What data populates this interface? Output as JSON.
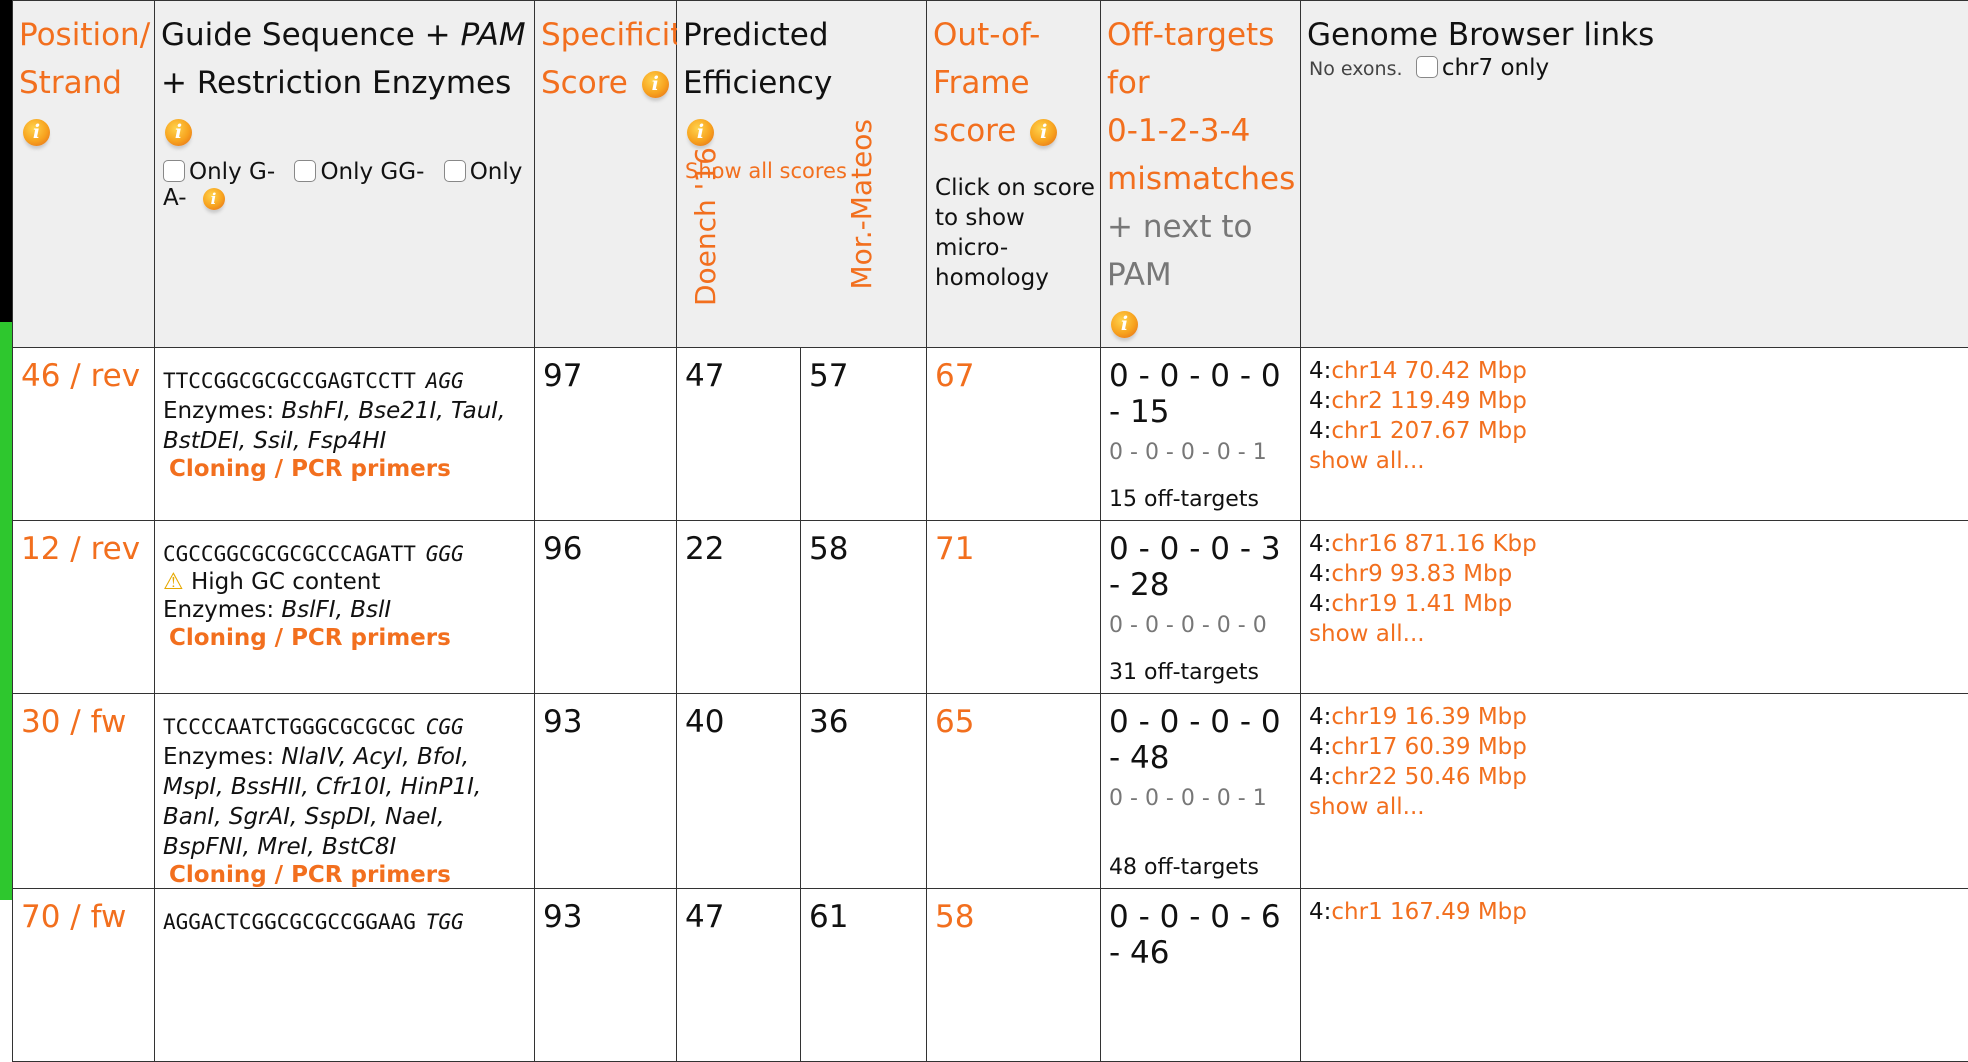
{
  "headers": {
    "position": {
      "line1": "Position/",
      "line2": "Strand"
    },
    "guide": {
      "line1": "Guide Sequence + ",
      "pam": "PAM",
      "line2": "+ Restriction Enzymes"
    },
    "filters": [
      "Only G-",
      "Only GG-",
      "Only A-"
    ],
    "specificity": {
      "line1": "Specificity",
      "line2": "Score"
    },
    "efficiency": {
      "title": "Predicted Efficiency",
      "show_all": "Show all scores",
      "col1": "Doench '16",
      "col2": "Mor.-Mateos"
    },
    "outframe": {
      "line1": "Out-of-Frame",
      "line2": "score",
      "note": "Click on score to show micro-homology"
    },
    "offtargets": {
      "line1": "Off-targets for",
      "line2": "0-1-2-3-4",
      "line3": "mismatches",
      "line4": "+ next to PAM"
    },
    "genome": {
      "title": "Genome Browser links",
      "no_exons": "No exons.",
      "chr_only": "chr7 only"
    }
  },
  "rows": [
    {
      "position": "46 / rev",
      "sequence": "TTCCGGCGCGCCGAGTCCTT",
      "pam": "AGG",
      "warning": "",
      "enzymes_label": "Enzymes: ",
      "enzymes": "BshFI, Bse21I, TauI, BstDEI, SsiI, Fsp4HI",
      "cloning": "Cloning / PCR primers",
      "specificity": "97",
      "doench": "47",
      "mor": "57",
      "outframe": "67",
      "mismatches": "0 - 0 - 0 - 0 - 15",
      "mismatches_pam": "0 - 0 - 0 - 0 - 1",
      "offtargets": "15 off-targets",
      "links": [
        {
          "prefix": "4:",
          "text": "chr14 70.42 Mbp"
        },
        {
          "prefix": "4:",
          "text": "chr2 119.49 Mbp"
        },
        {
          "prefix": "4:",
          "text": "chr1 207.67 Mbp"
        }
      ],
      "show_all": "show all..."
    },
    {
      "position": "12 / rev",
      "sequence": "CGCCGGCGCGCGCCCAGATT",
      "pam": "GGG",
      "warning": "High GC content",
      "enzymes_label": "Enzymes: ",
      "enzymes": "BslFI, BslI",
      "cloning": "Cloning / PCR primers",
      "specificity": "96",
      "doench": "22",
      "mor": "58",
      "outframe": "71",
      "mismatches": "0 - 0 - 0 - 3 - 28",
      "mismatches_pam": "0 - 0 - 0 - 0 - 0",
      "offtargets": "31 off-targets",
      "links": [
        {
          "prefix": "4:",
          "text": "chr16 871.16 Kbp"
        },
        {
          "prefix": "4:",
          "text": "chr9 93.83 Mbp"
        },
        {
          "prefix": "4:",
          "text": "chr19 1.41 Mbp"
        }
      ],
      "show_all": "show all..."
    },
    {
      "position": "30 / fw",
      "sequence": "TCCCCAATCTGGGCGCGCGC",
      "pam": "CGG",
      "warning": "",
      "enzymes_label": "Enzymes: ",
      "enzymes": "NlaIV, AcyI, BfoI, MspI, BssHII, Cfr10I, HinP1I, BanI, SgrAI, SspDI, NaeI, BspFNI, MreI, BstC8I",
      "cloning": "Cloning / PCR primers",
      "specificity": "93",
      "doench": "40",
      "mor": "36",
      "outframe": "65",
      "mismatches": "0 - 0 - 0 - 0 - 48",
      "mismatches_pam": "0 - 0 - 0 - 0 - 1",
      "offtargets": "48 off-targets",
      "links": [
        {
          "prefix": "4:",
          "text": "chr19 16.39 Mbp"
        },
        {
          "prefix": "4:",
          "text": "chr17 60.39 Mbp"
        },
        {
          "prefix": "4:",
          "text": "chr22 50.46 Mbp"
        }
      ],
      "show_all": "show all..."
    },
    {
      "position": "70 / fw",
      "sequence": "AGGACTCGGCGCGCCGGAAG",
      "pam": "TGG",
      "warning": "",
      "enzymes_label": "",
      "enzymes": "",
      "cloning": "",
      "specificity": "93",
      "doench": "47",
      "mor": "61",
      "outframe": "58",
      "mismatches": "0 - 0 - 0 - 6 - 46",
      "mismatches_pam": "",
      "offtargets": "",
      "links": [
        {
          "prefix": "4:",
          "text": "chr1 167.49 Mbp"
        }
      ],
      "show_all": ""
    }
  ]
}
